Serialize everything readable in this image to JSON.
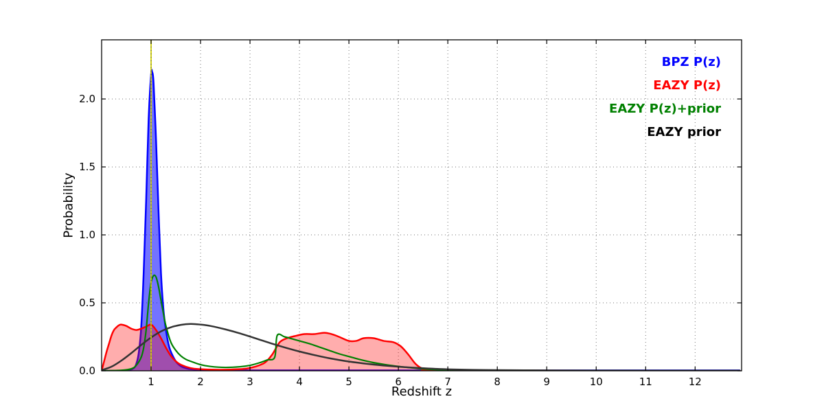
{
  "chart_data": {
    "type": "line",
    "title": "",
    "xlabel": "Redshift z",
    "ylabel": "Probability",
    "xlim": [
      0,
      12.94
    ],
    "ylim": [
      0,
      2.435
    ],
    "xticks": [
      1,
      2,
      3,
      4,
      5,
      6,
      7,
      8,
      9,
      10,
      11,
      12
    ],
    "xtick_labels": [
      "1",
      "2",
      "3",
      "4",
      "5",
      "6",
      "7",
      "8",
      "9",
      "10",
      "11",
      "12"
    ],
    "yticks": [
      0,
      0.5,
      1.0,
      1.5,
      2.0
    ],
    "ytick_labels": [
      "0.0",
      "0.5",
      "1.0",
      "1.5",
      "2.0"
    ],
    "grid": "dotted",
    "grid_color": "#707070",
    "frame_color": "#000000",
    "marker_line": {
      "x": 1.0,
      "color": "#cdcd00",
      "overlay_dotted_color": "#444444"
    },
    "legend": {
      "position": "upper right",
      "entries": [
        {
          "label": "BPZ P(z)",
          "color": "#0000ff"
        },
        {
          "label": "EAZY P(z)",
          "color": "#ff0000"
        },
        {
          "label": "EAZY P(z)+prior",
          "color": "#008000"
        },
        {
          "label": "EAZY prior",
          "color": "#000000"
        }
      ]
    },
    "series": [
      {
        "name": "BPZ P(z)",
        "color": "#0000ff",
        "width": 2.5,
        "fill": true,
        "fill_opacity": 0.55,
        "points": [
          [
            0,
            0
          ],
          [
            0.4,
            0.001
          ],
          [
            0.55,
            0.004
          ],
          [
            0.65,
            0.02
          ],
          [
            0.7,
            0.05
          ],
          [
            0.75,
            0.13
          ],
          [
            0.8,
            0.32
          ],
          [
            0.85,
            0.72
          ],
          [
            0.9,
            1.25
          ],
          [
            0.95,
            1.85
          ],
          [
            1.0,
            2.18
          ],
          [
            1.02,
            2.2
          ],
          [
            1.05,
            2.12
          ],
          [
            1.1,
            1.7
          ],
          [
            1.15,
            1.18
          ],
          [
            1.2,
            0.72
          ],
          [
            1.25,
            0.45
          ],
          [
            1.3,
            0.3
          ],
          [
            1.35,
            0.2
          ],
          [
            1.4,
            0.14
          ],
          [
            1.5,
            0.07
          ],
          [
            1.6,
            0.035
          ],
          [
            1.7,
            0.02
          ],
          [
            1.8,
            0.012
          ],
          [
            2.0,
            0.006
          ],
          [
            2.5,
            0.004
          ],
          [
            4,
            0.003
          ],
          [
            8,
            0.003
          ],
          [
            12.9,
            0.003
          ]
        ]
      },
      {
        "name": "EAZY P(z)",
        "color": "#ff0000",
        "width": 2.5,
        "fill": true,
        "fill_opacity": 0.32,
        "points": [
          [
            0,
            0
          ],
          [
            0.05,
            0.07
          ],
          [
            0.1,
            0.14
          ],
          [
            0.15,
            0.2
          ],
          [
            0.2,
            0.26
          ],
          [
            0.25,
            0.3
          ],
          [
            0.3,
            0.32
          ],
          [
            0.35,
            0.335
          ],
          [
            0.4,
            0.34
          ],
          [
            0.5,
            0.33
          ],
          [
            0.6,
            0.31
          ],
          [
            0.7,
            0.3
          ],
          [
            0.8,
            0.31
          ],
          [
            0.9,
            0.325
          ],
          [
            1.0,
            0.34
          ],
          [
            1.1,
            0.3
          ],
          [
            1.2,
            0.24
          ],
          [
            1.3,
            0.17
          ],
          [
            1.4,
            0.11
          ],
          [
            1.5,
            0.07
          ],
          [
            1.6,
            0.045
          ],
          [
            1.8,
            0.02
          ],
          [
            2.0,
            0.012
          ],
          [
            2.3,
            0.008
          ],
          [
            2.6,
            0.009
          ],
          [
            2.9,
            0.015
          ],
          [
            3.1,
            0.03
          ],
          [
            3.3,
            0.06
          ],
          [
            3.45,
            0.12
          ],
          [
            3.6,
            0.21
          ],
          [
            3.75,
            0.24
          ],
          [
            3.9,
            0.255
          ],
          [
            4.1,
            0.27
          ],
          [
            4.3,
            0.27
          ],
          [
            4.5,
            0.28
          ],
          [
            4.65,
            0.27
          ],
          [
            4.8,
            0.25
          ],
          [
            5.0,
            0.22
          ],
          [
            5.15,
            0.22
          ],
          [
            5.3,
            0.24
          ],
          [
            5.5,
            0.24
          ],
          [
            5.7,
            0.22
          ],
          [
            5.9,
            0.21
          ],
          [
            6.05,
            0.18
          ],
          [
            6.2,
            0.12
          ],
          [
            6.35,
            0.05
          ],
          [
            6.5,
            0.015
          ],
          [
            6.7,
            0.005
          ],
          [
            7.0,
            0.002
          ],
          [
            12.9,
            0.001
          ]
        ]
      },
      {
        "name": "EAZY P(z)+prior",
        "color": "#008000",
        "width": 2.2,
        "fill": false,
        "fill_opacity": 0,
        "points": [
          [
            0,
            0
          ],
          [
            0.4,
            0.004
          ],
          [
            0.6,
            0.015
          ],
          [
            0.7,
            0.04
          ],
          [
            0.8,
            0.1
          ],
          [
            0.85,
            0.17
          ],
          [
            0.9,
            0.3
          ],
          [
            0.95,
            0.5
          ],
          [
            1.0,
            0.65
          ],
          [
            1.05,
            0.7
          ],
          [
            1.1,
            0.69
          ],
          [
            1.15,
            0.62
          ],
          [
            1.2,
            0.52
          ],
          [
            1.25,
            0.42
          ],
          [
            1.3,
            0.33
          ],
          [
            1.4,
            0.21
          ],
          [
            1.5,
            0.15
          ],
          [
            1.6,
            0.11
          ],
          [
            1.7,
            0.085
          ],
          [
            1.8,
            0.07
          ],
          [
            2.0,
            0.045
          ],
          [
            2.2,
            0.032
          ],
          [
            2.5,
            0.025
          ],
          [
            2.8,
            0.03
          ],
          [
            3.0,
            0.04
          ],
          [
            3.2,
            0.06
          ],
          [
            3.35,
            0.08
          ],
          [
            3.5,
            0.1
          ],
          [
            3.55,
            0.26
          ],
          [
            3.7,
            0.25
          ],
          [
            3.85,
            0.235
          ],
          [
            4.0,
            0.22
          ],
          [
            4.2,
            0.2
          ],
          [
            4.4,
            0.175
          ],
          [
            4.6,
            0.15
          ],
          [
            4.8,
            0.125
          ],
          [
            5.0,
            0.105
          ],
          [
            5.2,
            0.085
          ],
          [
            5.5,
            0.06
          ],
          [
            5.8,
            0.042
          ],
          [
            6.1,
            0.028
          ],
          [
            6.4,
            0.017
          ],
          [
            6.7,
            0.01
          ],
          [
            7.0,
            0.006
          ],
          [
            7.5,
            0.003
          ],
          [
            8.5,
            0.002
          ],
          [
            12.9,
            0.001
          ]
        ]
      },
      {
        "name": "EAZY prior",
        "color": "#333333",
        "width": 2.5,
        "fill": false,
        "fill_opacity": 0,
        "points": [
          [
            0,
            0.005
          ],
          [
            0.2,
            0.03
          ],
          [
            0.4,
            0.075
          ],
          [
            0.6,
            0.13
          ],
          [
            0.8,
            0.19
          ],
          [
            1.0,
            0.245
          ],
          [
            1.2,
            0.29
          ],
          [
            1.4,
            0.32
          ],
          [
            1.6,
            0.338
          ],
          [
            1.8,
            0.345
          ],
          [
            2.0,
            0.34
          ],
          [
            2.2,
            0.33
          ],
          [
            2.5,
            0.305
          ],
          [
            2.8,
            0.275
          ],
          [
            3.1,
            0.24
          ],
          [
            3.4,
            0.205
          ],
          [
            3.7,
            0.172
          ],
          [
            4.0,
            0.142
          ],
          [
            4.3,
            0.116
          ],
          [
            4.6,
            0.093
          ],
          [
            5.0,
            0.068
          ],
          [
            5.4,
            0.05
          ],
          [
            5.8,
            0.036
          ],
          [
            6.2,
            0.025
          ],
          [
            6.6,
            0.017
          ],
          [
            7.0,
            0.011
          ],
          [
            7.5,
            0.007
          ],
          [
            8.0,
            0.005
          ],
          [
            9.0,
            0.003
          ],
          [
            10.0,
            0.002
          ],
          [
            12.9,
            0.001
          ]
        ]
      }
    ]
  }
}
